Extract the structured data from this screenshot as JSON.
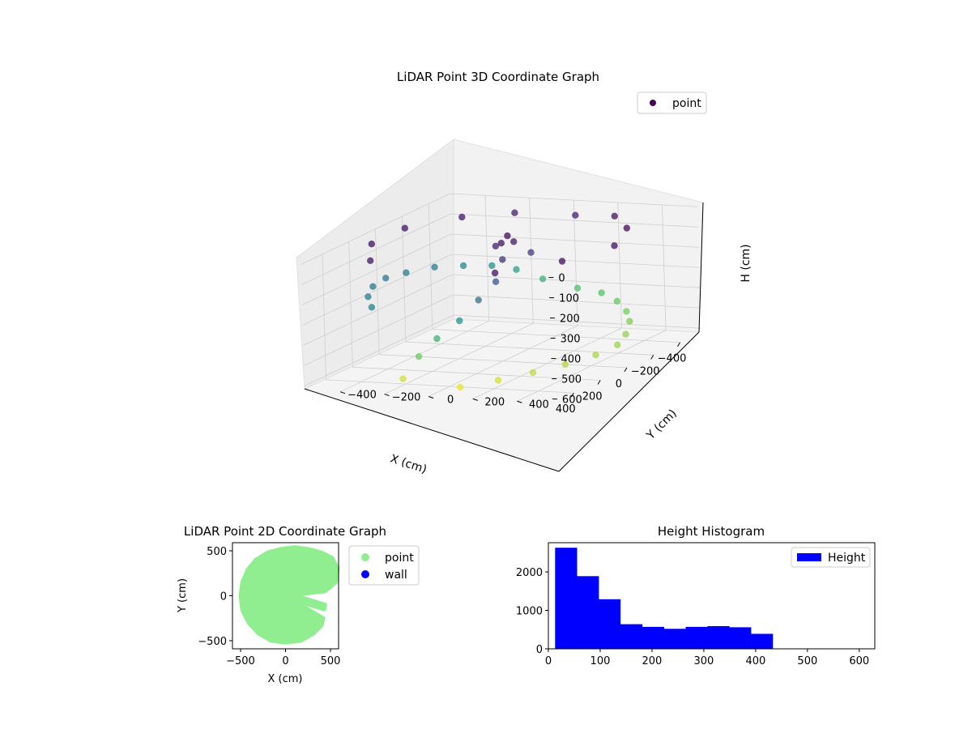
{
  "chart_data": [
    {
      "type": "scatter",
      "projection": "3d",
      "title": "LiDAR Point 3D Coordinate Graph",
      "xlabel": "X (cm)",
      "ylabel": "Y (cm)",
      "zlabel": "H (cm)",
      "x_ticks": [
        -400,
        -200,
        0,
        200,
        400
      ],
      "y_ticks": [
        -400,
        -200,
        0,
        200,
        400
      ],
      "z_ticks": [
        0,
        100,
        200,
        300,
        400,
        500,
        600
      ],
      "xlim": [
        -560,
        560
      ],
      "ylim": [
        -560,
        560
      ],
      "zlim": [
        0,
        620
      ],
      "z_inverted": true,
      "colormap": "viridis",
      "legend": {
        "placement": "upper-right",
        "entries": [
          {
            "label": "point",
            "color": "#440154"
          }
        ]
      },
      "series": [
        {
          "name": "point",
          "description_of_distribution": "ring of points around the sensor, outer radius ~500-560 cm, missing wedge near +X; heights 0-600 cm colored by height",
          "points": [
            [
              -520,
              30,
              420
            ],
            [
              -510,
              -120,
              380
            ],
            [
              -480,
              -220,
              330
            ],
            [
              -430,
              -300,
              300
            ],
            [
              -350,
              -380,
              280
            ],
            [
              -250,
              -450,
              260
            ],
            [
              -120,
              -500,
              250
            ],
            [
              0,
              -520,
              240
            ],
            [
              130,
              -500,
              240
            ],
            [
              250,
              -450,
              250
            ],
            [
              340,
              -380,
              270
            ],
            [
              -500,
              150,
              430
            ],
            [
              -450,
              250,
              450
            ],
            [
              -370,
              340,
              470
            ],
            [
              -260,
              420,
              480
            ],
            [
              -130,
              480,
              500
            ],
            [
              0,
              520,
              510
            ],
            [
              130,
              500,
              520
            ],
            [
              260,
              440,
              530
            ],
            [
              370,
              360,
              540
            ],
            [
              450,
              250,
              560
            ],
            [
              520,
              120,
              580
            ],
            [
              -520,
              30,
              60
            ],
            [
              -480,
              -220,
              50
            ],
            [
              -350,
              -380,
              40
            ],
            [
              -120,
              -500,
              30
            ],
            [
              130,
              -500,
              30
            ],
            [
              340,
              -380,
              40
            ],
            [
              -450,
              250,
              30
            ],
            [
              -260,
              420,
              20
            ],
            [
              0,
              520,
              20
            ],
            [
              260,
              440,
              20
            ],
            [
              450,
              250,
              30
            ],
            [
              -60,
              0,
              20
            ],
            [
              -40,
              40,
              40
            ],
            [
              20,
              20,
              30
            ],
            [
              -20,
              -30,
              60
            ],
            [
              80,
              60,
              90
            ],
            [
              -100,
              80,
              110
            ],
            [
              200,
              100,
              160
            ],
            [
              300,
              80,
              220
            ],
            [
              380,
              40,
              300
            ],
            [
              420,
              -40,
              380
            ],
            [
              460,
              -100,
              460
            ],
            [
              500,
              -150,
              560
            ]
          ]
        }
      ]
    },
    {
      "type": "scatter",
      "title": "LiDAR Point 2D Coordinate Graph",
      "xlabel": "X (cm)",
      "ylabel": "Y (cm)",
      "x_ticks": [
        -500,
        0,
        500
      ],
      "y_ticks": [
        -500,
        0,
        500
      ],
      "xlim": [
        -590,
        590
      ],
      "ylim": [
        -590,
        590
      ],
      "legend": {
        "placement": "right-outside",
        "entries": [
          {
            "label": "point",
            "color": "#90ee90"
          },
          {
            "label": "wall",
            "color": "#0000ff"
          }
        ]
      },
      "series": [
        {
          "name": "point",
          "color": "#90ee90",
          "shape": "filled disc of radius ~520 cm with a wedge cut out on the +X side (angles about -25° to +5°)",
          "outline": [
            [
              -500,
              0
            ],
            [
              -480,
              -160
            ],
            [
              -410,
              -300
            ],
            [
              -300,
              -420
            ],
            [
              -160,
              -500
            ],
            [
              0,
              -520
            ],
            [
              170,
              -500
            ],
            [
              310,
              -420
            ],
            [
              400,
              -330
            ],
            [
              420,
              -250
            ],
            [
              60,
              -40
            ],
            [
              430,
              -150
            ],
            [
              440,
              -100
            ],
            [
              80,
              10
            ],
            [
              440,
              50
            ],
            [
              560,
              150
            ],
            [
              580,
              300
            ],
            [
              520,
              420
            ],
            [
              400,
              480
            ],
            [
              250,
              520
            ],
            [
              100,
              540
            ],
            [
              -50,
              520
            ],
            [
              -200,
              480
            ],
            [
              -330,
              400
            ],
            [
              -420,
              290
            ],
            [
              -480,
              150
            ]
          ]
        },
        {
          "name": "wall",
          "color": "#0000ff",
          "points": []
        }
      ]
    },
    {
      "type": "bar",
      "subtype": "histogram",
      "title": "Height Histogram",
      "xlabel": "",
      "ylabel": "",
      "x_ticks": [
        0,
        100,
        200,
        300,
        400,
        500,
        600
      ],
      "y_ticks": [
        0,
        1000,
        2000
      ],
      "xlim": [
        0,
        630
      ],
      "ylim": [
        0,
        2760
      ],
      "legend": {
        "placement": "upper-right",
        "entries": [
          {
            "label": "Height",
            "color": "#0000ff"
          }
        ]
      },
      "series": [
        {
          "name": "Height",
          "color": "#0000ff",
          "bins": [
            [
              13,
              55,
              2630
            ],
            [
              55,
              97,
              1890
            ],
            [
              97,
              139,
              1290
            ],
            [
              139,
              181,
              640
            ],
            [
              181,
              223,
              570
            ],
            [
              223,
              265,
              520
            ],
            [
              265,
              307,
              570
            ],
            [
              307,
              349,
              590
            ],
            [
              349,
              391,
              560
            ],
            [
              391,
              433,
              390
            ],
            [
              433,
              475,
              0
            ],
            [
              475,
              517,
              0
            ],
            [
              517,
              559,
              0
            ],
            [
              559,
              601,
              0
            ]
          ]
        }
      ]
    }
  ]
}
